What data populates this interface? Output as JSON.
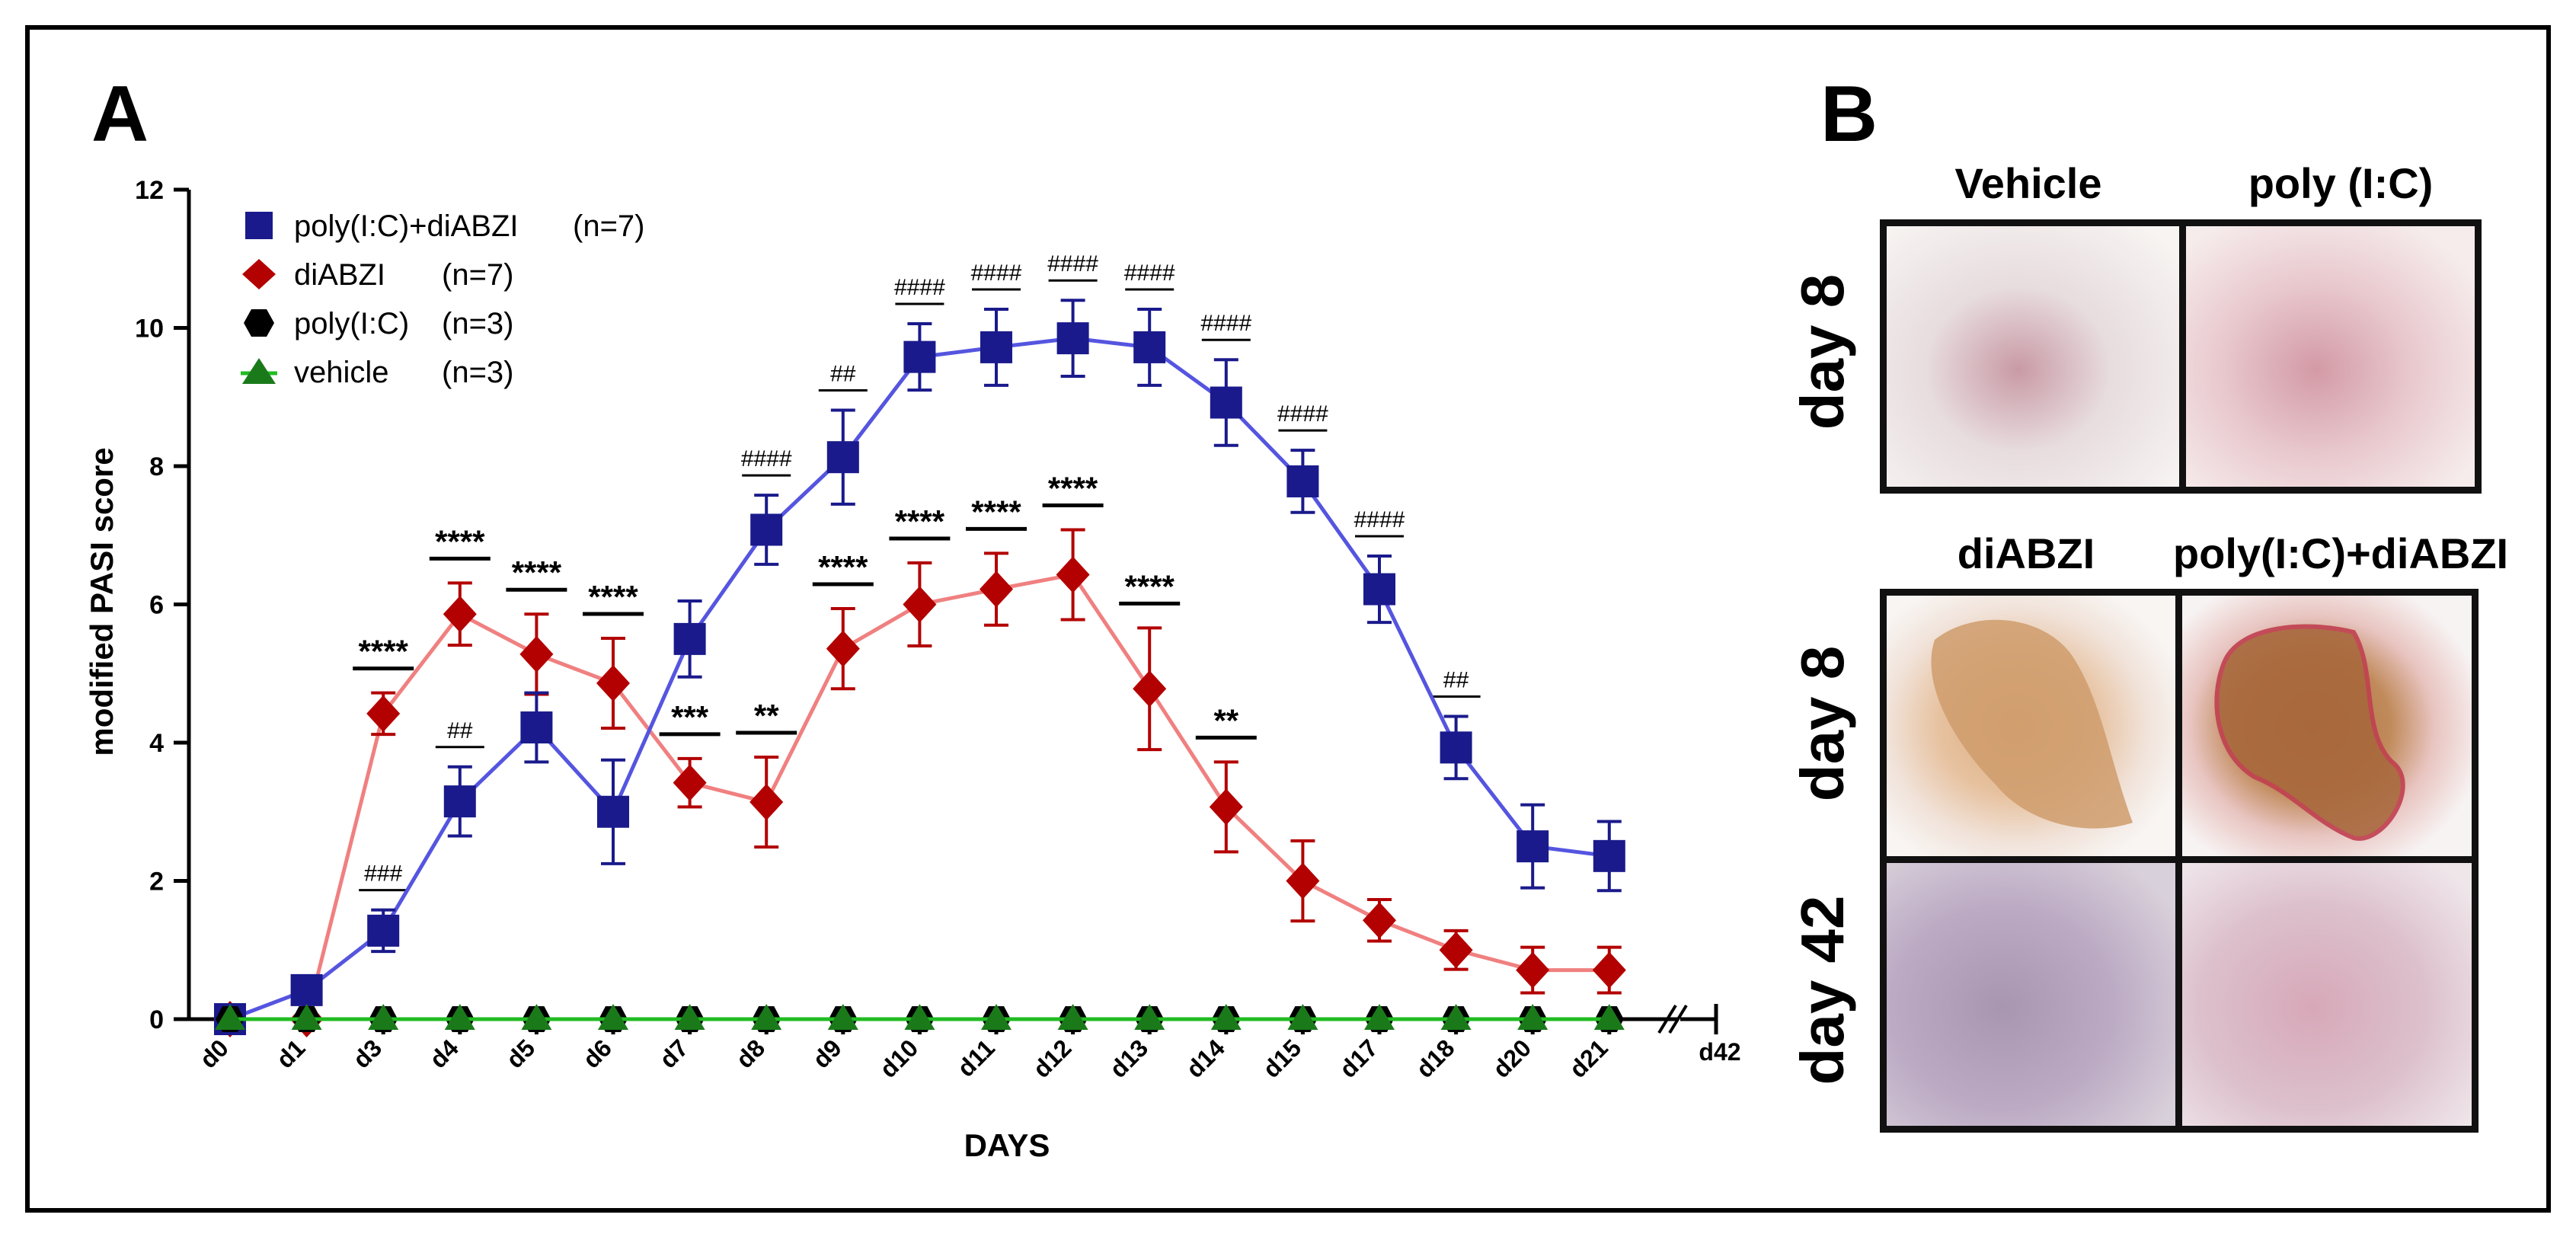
{
  "chart_data": {
    "type": "line",
    "panel_label": "A",
    "xlabel": "DAYS",
    "ylabel": "modified PASI score",
    "ylim": [
      0,
      12
    ],
    "yticks": [
      0,
      2,
      4,
      6,
      8,
      10,
      12
    ],
    "categories": [
      "d0",
      "d1",
      "d3",
      "d4",
      "d5",
      "d6",
      "d7",
      "d8",
      "d9",
      "d10",
      "d11",
      "d12",
      "d13",
      "d14",
      "d15",
      "d17",
      "d18",
      "d20",
      "d21"
    ],
    "break_label": "d42",
    "series": [
      {
        "name": "poly(I:C)+diABZI",
        "n": "(n=7)",
        "marker": "square",
        "marker_color": "#1a1a8c",
        "line_color": "#5555e0",
        "values": [
          0,
          0.42,
          1.28,
          3.15,
          4.22,
          3.0,
          5.5,
          7.08,
          8.13,
          9.58,
          9.72,
          9.85,
          9.72,
          8.92,
          7.78,
          6.22,
          3.93,
          2.5,
          2.36
        ],
        "err": [
          0,
          0.12,
          0.3,
          0.5,
          0.5,
          0.75,
          0.55,
          0.5,
          0.68,
          0.48,
          0.55,
          0.55,
          0.55,
          0.62,
          0.45,
          0.48,
          0.45,
          0.6,
          0.5
        ]
      },
      {
        "name": "diABZI",
        "n": "(n=7)",
        "marker": "diamond",
        "marker_color": "#b30000",
        "line_color": "#f08080",
        "values": [
          0,
          0,
          4.42,
          5.86,
          5.28,
          4.86,
          3.42,
          3.14,
          5.36,
          6.0,
          6.22,
          6.43,
          4.78,
          3.07,
          2.0,
          1.43,
          1.0,
          0.71,
          0.71
        ],
        "err": [
          0,
          0,
          0.3,
          0.45,
          0.58,
          0.65,
          0.35,
          0.65,
          0.58,
          0.6,
          0.52,
          0.65,
          0.88,
          0.65,
          0.58,
          0.3,
          0.28,
          0.33,
          0.33
        ]
      },
      {
        "name": "poly(I:C)",
        "n": "(n=3)",
        "marker": "hexagon",
        "marker_color": "#000000",
        "line_color": "#000000",
        "values": [
          0,
          0,
          0,
          0,
          0,
          0,
          0,
          0,
          0,
          0,
          0,
          0,
          0,
          0,
          0,
          0,
          0,
          0,
          0
        ]
      },
      {
        "name": "vehicle",
        "n": "(n=3)",
        "marker": "triangle",
        "marker_color": "#1a7a1a",
        "line_color": "#22bb22",
        "values": [
          0,
          0,
          0,
          0,
          0,
          0,
          0,
          0,
          0,
          0,
          0,
          0,
          0,
          0,
          0,
          0,
          0,
          0,
          0
        ]
      }
    ],
    "diABZI_significance": [
      {
        "day": "d3",
        "label": "****"
      },
      {
        "day": "d4",
        "label": "****"
      },
      {
        "day": "d5",
        "label": "****"
      },
      {
        "day": "d6",
        "label": "****"
      },
      {
        "day": "d7",
        "label": "***"
      },
      {
        "day": "d8",
        "label": "**"
      },
      {
        "day": "d9",
        "label": "****"
      },
      {
        "day": "d10",
        "label": "****"
      },
      {
        "day": "d11",
        "label": "****"
      },
      {
        "day": "d12",
        "label": "****"
      },
      {
        "day": "d13",
        "label": "****"
      },
      {
        "day": "d14",
        "label": "**"
      }
    ],
    "combo_significance": [
      {
        "day": "d3",
        "label": "###"
      },
      {
        "day": "d4",
        "label": "##"
      },
      {
        "day": "d8",
        "label": "####"
      },
      {
        "day": "d9",
        "label": "##"
      },
      {
        "day": "d10",
        "label": "####"
      },
      {
        "day": "d11",
        "label": "####"
      },
      {
        "day": "d12",
        "label": "####"
      },
      {
        "day": "d13",
        "label": "####"
      },
      {
        "day": "d14",
        "label": "####"
      },
      {
        "day": "d15",
        "label": "####"
      },
      {
        "day": "d17",
        "label": "####"
      },
      {
        "day": "d18",
        "label": "##"
      }
    ]
  },
  "panel_b": {
    "label": "B",
    "top_columns": [
      "Vehicle",
      "poly (I:C)"
    ],
    "top_row": "day 8",
    "bottom_columns": [
      "diABZI",
      "poly(I:C)+diABZI"
    ],
    "bottom_rows": [
      "day 8",
      "day 42"
    ]
  }
}
